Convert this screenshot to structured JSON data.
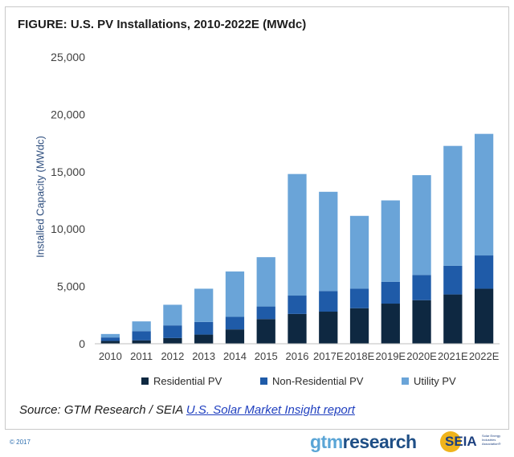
{
  "title": "FIGURE: U.S. PV Installations, 2010-2022E (MWdc)",
  "source": {
    "prefix": "Source: GTM Research / SEIA ",
    "link_text": "U.S. Solar Market Insight report"
  },
  "copyright": "© 2017",
  "logos": {
    "gtm_part1": "gtm",
    "gtm_part2": "research",
    "seia": "SEIA",
    "seia_subtitle": "Solar Energy Industries Association®"
  },
  "colors": {
    "residential": "#0e2841",
    "non_residential": "#1f5ba8",
    "utility": "#6aa4d8",
    "axis_text": "#404040",
    "grid": "#e6e6e6"
  },
  "chart_data": {
    "type": "bar",
    "stacked": true,
    "title": "FIGURE: U.S. PV Installations, 2010-2022E (MWdc)",
    "xlabel": "",
    "ylabel": "Installed Capacity (MWdc)",
    "ylim": [
      0,
      25000
    ],
    "yticks": [
      0,
      5000,
      10000,
      15000,
      20000,
      25000
    ],
    "ytick_labels": [
      "0",
      "5,000",
      "10,000",
      "15,000",
      "20,000",
      "25,000"
    ],
    "grid": false,
    "legend_position": "bottom",
    "categories": [
      "2010",
      "2011",
      "2012",
      "2013",
      "2014",
      "2015",
      "2016",
      "2017E",
      "2018E",
      "2019E",
      "2020E",
      "2021E",
      "2022E"
    ],
    "series": [
      {
        "name": "Residential PV",
        "values": [
          250,
          300,
          500,
          800,
          1250,
          2150,
          2600,
          2800,
          3100,
          3500,
          3800,
          4300,
          4800
        ]
      },
      {
        "name": "Non-Residential PV",
        "values": [
          300,
          800,
          1100,
          1100,
          1100,
          1100,
          1600,
          1800,
          1700,
          1900,
          2200,
          2500,
          2900
        ]
      },
      {
        "name": "Utility PV",
        "values": [
          300,
          850,
          1800,
          2900,
          3950,
          4300,
          10600,
          8650,
          6350,
          7100,
          8700,
          10450,
          10600
        ]
      }
    ]
  }
}
